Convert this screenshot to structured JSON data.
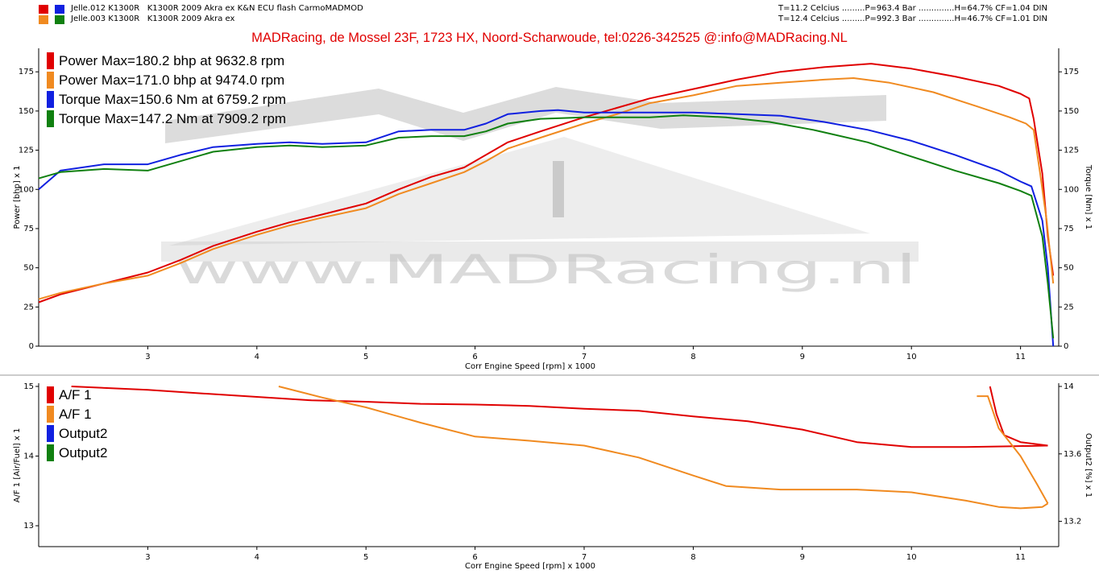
{
  "header": {
    "runs": [
      {
        "name": "Jelle.012 K1300R   K1300R 2009 Akra ex K&N ECU flash CarmoMADMOD",
        "colors": [
          "#e00000",
          "#1020e0"
        ],
        "conditions": "T=11.2 Celcius .........P=963.4 Bar ..............H=64.7% CF=1.04 DIN"
      },
      {
        "name": "Jelle.003 K1300R   K1300R 2009 Akra ex",
        "colors": [
          "#f08a20",
          "#108010"
        ],
        "conditions": "T=12.4 Celcius .........P=992.3 Bar ..............H=46.7% CF=1.01 DIN"
      }
    ],
    "banner": "MADRacing, de Mossel 23F, 1723 HX, Noord-Scharwoude,  tel:0226-342525   @:info@MADRacing.NL"
  },
  "watermark": {
    "text": "www.MADRacing.nl"
  },
  "colors": {
    "red": "#e00000",
    "orange": "#f08a20",
    "blue": "#1020e0",
    "green": "#108010"
  },
  "chart_data": [
    {
      "type": "line",
      "xlabel": "Corr Engine Speed [rpm] x 1000",
      "ylabel": "Power [bhp] x 1",
      "y2label": "Torque [Nm] x 1",
      "xlim": [
        2.0,
        11.35
      ],
      "ylim": [
        0,
        190
      ],
      "y2lim": [
        0,
        190
      ],
      "xticks": [
        3,
        4,
        5,
        6,
        7,
        8,
        9,
        10,
        11
      ],
      "yticks": [
        0,
        25,
        50,
        75,
        100,
        125,
        150,
        175
      ],
      "y2ticks": [
        0,
        25,
        50,
        75,
        100,
        125,
        150,
        175
      ],
      "legend": [
        {
          "label": "Power  Max=180.2 bhp at 9632.8 rpm",
          "color": "#e00000"
        },
        {
          "label": "Power  Max=171.0 bhp at 9474.0 rpm",
          "color": "#f08a20"
        },
        {
          "label": "Torque  Max=150.6 Nm at 6759.2 rpm",
          "color": "#1020e0"
        },
        {
          "label": "Torque  Max=147.2 Nm at 7909.2 rpm",
          "color": "#108010"
        }
      ],
      "series": [
        {
          "name": "Power  Max=180.2 bhp at 9632.8 rpm",
          "color": "#e00000",
          "axis": "y",
          "points": [
            [
              2.0,
              28
            ],
            [
              2.2,
              33
            ],
            [
              2.6,
              40
            ],
            [
              3.0,
              47
            ],
            [
              3.3,
              55
            ],
            [
              3.6,
              64
            ],
            [
              4.0,
              73
            ],
            [
              4.3,
              79
            ],
            [
              4.6,
              84
            ],
            [
              5.0,
              91
            ],
            [
              5.3,
              100
            ],
            [
              5.6,
              108
            ],
            [
              5.9,
              114
            ],
            [
              6.1,
              122
            ],
            [
              6.3,
              130
            ],
            [
              6.6,
              137
            ],
            [
              7.0,
              146
            ],
            [
              7.3,
              152
            ],
            [
              7.6,
              158
            ],
            [
              8.0,
              164
            ],
            [
              8.4,
              170
            ],
            [
              8.8,
              175
            ],
            [
              9.2,
              178
            ],
            [
              9.63,
              180.2
            ],
            [
              10.0,
              177
            ],
            [
              10.4,
              172
            ],
            [
              10.8,
              166
            ],
            [
              11.0,
              161
            ],
            [
              11.08,
              158
            ],
            [
              11.12,
              145
            ],
            [
              11.2,
              110
            ],
            [
              11.25,
              70
            ],
            [
              11.3,
              45
            ]
          ]
        },
        {
          "name": "Power  Max=171.0 bhp at 9474.0 rpm",
          "color": "#f08a20",
          "axis": "y",
          "points": [
            [
              2.0,
              30
            ],
            [
              2.2,
              34
            ],
            [
              2.6,
              40
            ],
            [
              3.0,
              45
            ],
            [
              3.3,
              53
            ],
            [
              3.6,
              62
            ],
            [
              4.0,
              71
            ],
            [
              4.3,
              77
            ],
            [
              4.6,
              82
            ],
            [
              5.0,
              88
            ],
            [
              5.3,
              97
            ],
            [
              5.6,
              104
            ],
            [
              5.9,
              111
            ],
            [
              6.1,
              118
            ],
            [
              6.3,
              126
            ],
            [
              6.6,
              133
            ],
            [
              7.0,
              142
            ],
            [
              7.3,
              148
            ],
            [
              7.6,
              155
            ],
            [
              8.0,
              160
            ],
            [
              8.4,
              166
            ],
            [
              8.8,
              168
            ],
            [
              9.2,
              170
            ],
            [
              9.47,
              171.0
            ],
            [
              9.8,
              168
            ],
            [
              10.2,
              162
            ],
            [
              10.6,
              153
            ],
            [
              10.9,
              146
            ],
            [
              11.05,
              142
            ],
            [
              11.12,
              138
            ],
            [
              11.18,
              110
            ],
            [
              11.24,
              80
            ],
            [
              11.3,
              40
            ]
          ]
        },
        {
          "name": "Torque  Max=150.6 Nm at 6759.2 rpm",
          "color": "#1020e0",
          "axis": "y2",
          "points": [
            [
              2.0,
              100
            ],
            [
              2.2,
              112
            ],
            [
              2.6,
              116
            ],
            [
              3.0,
              116
            ],
            [
              3.3,
              122
            ],
            [
              3.6,
              127
            ],
            [
              4.0,
              129
            ],
            [
              4.3,
              130
            ],
            [
              4.6,
              129
            ],
            [
              5.0,
              130
            ],
            [
              5.3,
              137
            ],
            [
              5.6,
              138
            ],
            [
              5.9,
              138
            ],
            [
              6.1,
              142
            ],
            [
              6.3,
              148
            ],
            [
              6.6,
              150
            ],
            [
              6.76,
              150.6
            ],
            [
              7.0,
              149
            ],
            [
              7.3,
              149
            ],
            [
              7.6,
              149
            ],
            [
              8.0,
              149
            ],
            [
              8.4,
              148
            ],
            [
              8.8,
              147
            ],
            [
              9.2,
              143
            ],
            [
              9.6,
              138
            ],
            [
              10.0,
              131
            ],
            [
              10.4,
              122
            ],
            [
              10.8,
              112
            ],
            [
              11.0,
              105
            ],
            [
              11.1,
              102
            ],
            [
              11.2,
              80
            ],
            [
              11.25,
              50
            ],
            [
              11.3,
              0
            ]
          ]
        },
        {
          "name": "Torque  Max=147.2 Nm at 7909.2 rpm",
          "color": "#108010",
          "axis": "y2",
          "points": [
            [
              2.0,
              107
            ],
            [
              2.2,
              111
            ],
            [
              2.6,
              113
            ],
            [
              3.0,
              112
            ],
            [
              3.3,
              118
            ],
            [
              3.6,
              124
            ],
            [
              4.0,
              127
            ],
            [
              4.3,
              128
            ],
            [
              4.6,
              127
            ],
            [
              5.0,
              128
            ],
            [
              5.3,
              133
            ],
            [
              5.6,
              134
            ],
            [
              5.9,
              134
            ],
            [
              6.1,
              137
            ],
            [
              6.3,
              142
            ],
            [
              6.6,
              145
            ],
            [
              7.0,
              146
            ],
            [
              7.3,
              146
            ],
            [
              7.6,
              146
            ],
            [
              7.91,
              147.2
            ],
            [
              8.3,
              146
            ],
            [
              8.7,
              143
            ],
            [
              9.1,
              138
            ],
            [
              9.6,
              130
            ],
            [
              10.0,
              121
            ],
            [
              10.4,
              112
            ],
            [
              10.8,
              104
            ],
            [
              11.0,
              99
            ],
            [
              11.1,
              96
            ],
            [
              11.2,
              70
            ],
            [
              11.25,
              40
            ],
            [
              11.3,
              5
            ]
          ]
        }
      ]
    },
    {
      "type": "line",
      "xlabel": "Corr Engine Speed [rpm] x 1000",
      "ylabel": "A/F 1 [Air/Fuel] x 1",
      "y2label": "Output2 [%] x 1",
      "xlim": [
        2.0,
        11.35
      ],
      "ylim": [
        12.7,
        15.0
      ],
      "y2lim": [
        13.05,
        14.0
      ],
      "xticks": [
        3,
        4,
        5,
        6,
        7,
        8,
        9,
        10,
        11
      ],
      "yticks": [
        13,
        14,
        15
      ],
      "y2ticks": [
        13.2,
        13.6,
        14
      ],
      "legend": [
        {
          "label": "A/F 1",
          "color": "#e00000"
        },
        {
          "label": "A/F 1",
          "color": "#f08a20"
        },
        {
          "label": "Output2",
          "color": "#1020e0"
        },
        {
          "label": "Output2",
          "color": "#108010"
        }
      ],
      "series": [
        {
          "name": "A/F 1",
          "color": "#e00000",
          "axis": "y",
          "points": [
            [
              2.3,
              15.0
            ],
            [
              3.0,
              14.95
            ],
            [
              3.5,
              14.9
            ],
            [
              4.0,
              14.85
            ],
            [
              4.5,
              14.8
            ],
            [
              5.0,
              14.78
            ],
            [
              5.5,
              14.75
            ],
            [
              6.0,
              14.74
            ],
            [
              6.5,
              14.72
            ],
            [
              7.0,
              14.68
            ],
            [
              7.5,
              14.65
            ],
            [
              8.0,
              14.57
            ],
            [
              8.5,
              14.5
            ],
            [
              9.0,
              14.38
            ],
            [
              9.5,
              14.2
            ],
            [
              10.0,
              14.13
            ],
            [
              10.5,
              14.13
            ],
            [
              10.9,
              14.14
            ],
            [
              11.25,
              14.15
            ]
          ]
        },
        {
          "name": "A/F 1",
          "color": "#e00000",
          "axis": "y",
          "points": [
            [
              10.72,
              15.0
            ],
            [
              10.78,
              14.6
            ],
            [
              10.85,
              14.3
            ],
            [
              11.0,
              14.2
            ],
            [
              11.25,
              14.15
            ]
          ]
        },
        {
          "name": "A/F 1",
          "color": "#f08a20",
          "axis": "y",
          "points": [
            [
              4.2,
              15.0
            ],
            [
              4.6,
              14.84
            ],
            [
              5.0,
              14.7
            ],
            [
              5.5,
              14.48
            ],
            [
              6.0,
              14.28
            ],
            [
              6.5,
              14.22
            ],
            [
              7.0,
              14.15
            ],
            [
              7.5,
              13.98
            ],
            [
              8.0,
              13.72
            ],
            [
              8.3,
              13.57
            ],
            [
              8.8,
              13.52
            ],
            [
              9.5,
              13.52
            ],
            [
              10.0,
              13.48
            ],
            [
              10.5,
              13.36
            ],
            [
              10.8,
              13.27
            ],
            [
              11.0,
              13.25
            ],
            [
              11.2,
              13.27
            ],
            [
              11.25,
              13.32
            ]
          ]
        },
        {
          "name": "A/F 1",
          "color": "#f08a20",
          "axis": "y",
          "points": [
            [
              10.6,
              14.86
            ],
            [
              10.7,
              14.86
            ],
            [
              10.8,
              14.4
            ],
            [
              11.0,
              14.0
            ],
            [
              11.15,
              13.6
            ],
            [
              11.25,
              13.32
            ]
          ]
        }
      ]
    }
  ]
}
